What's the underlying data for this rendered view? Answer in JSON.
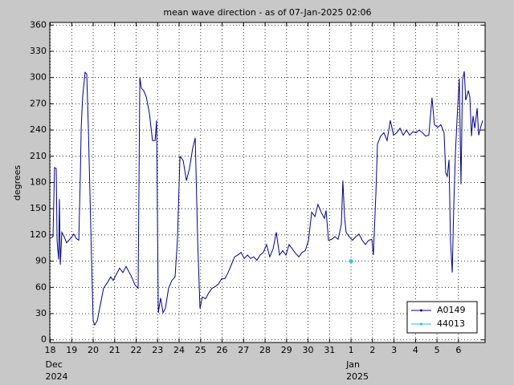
{
  "chart_data": {
    "type": "line",
    "title": "mean wave direction - as of 07-Jan-2025 02:06",
    "ylabel": "degrees",
    "xlim": [
      17.98,
      38.24
    ],
    "ylim": [
      -3,
      363
    ],
    "yticks": [
      0,
      30,
      60,
      90,
      120,
      150,
      180,
      210,
      240,
      270,
      300,
      330,
      360
    ],
    "xticks": [
      18,
      19,
      20,
      21,
      22,
      23,
      24,
      25,
      26,
      27,
      28,
      29,
      30,
      31,
      {
        "value": 32,
        "label": "1"
      },
      {
        "value": 33,
        "label": "2"
      },
      {
        "value": 34,
        "label": "3"
      },
      {
        "value": 35,
        "label": "4"
      },
      {
        "value": 36,
        "label": "5"
      },
      {
        "value": 37,
        "label": "6"
      }
    ],
    "x_period_labels": [
      {
        "value": 18,
        "label": "Dec",
        "year": "2024"
      },
      {
        "value": 32,
        "label": "Jan",
        "year": "2025"
      }
    ],
    "grid": true,
    "legend": "lower right",
    "series": [
      {
        "name": "A0149",
        "color": "#00008b",
        "x": [
          17.98,
          18.13,
          18.2,
          18.28,
          18.32,
          18.39,
          18.43,
          18.47,
          18.54,
          18.65,
          18.76,
          18.91,
          19.1,
          19.21,
          19.33,
          19.4,
          19.44,
          19.51,
          19.62,
          19.7,
          19.77,
          19.85,
          19.92,
          20.0,
          20.07,
          20.19,
          20.33,
          20.48,
          20.67,
          20.82,
          20.93,
          21.08,
          21.23,
          21.38,
          21.53,
          21.68,
          21.79,
          21.94,
          22.09,
          22.17,
          22.24,
          22.35,
          22.47,
          22.61,
          22.76,
          22.88,
          22.95,
          23.03,
          23.14,
          23.25,
          23.36,
          23.51,
          23.66,
          23.81,
          23.92,
          24.04,
          24.19,
          24.34,
          24.48,
          24.63,
          24.75,
          24.86,
          24.97,
          25.08,
          25.23,
          25.38,
          25.53,
          25.68,
          25.83,
          25.98,
          26.13,
          26.28,
          26.43,
          26.58,
          26.73,
          26.88,
          27.03,
          27.18,
          27.33,
          27.47,
          27.62,
          27.77,
          27.92,
          28.07,
          28.22,
          28.37,
          28.52,
          28.67,
          28.82,
          28.97,
          29.12,
          29.27,
          29.42,
          29.57,
          29.72,
          29.87,
          30.02,
          30.17,
          30.32,
          30.46,
          30.61,
          30.76,
          30.84,
          30.95,
          31.1,
          31.25,
          31.4,
          31.55,
          31.62,
          31.7,
          31.77,
          31.92,
          32.07,
          32.22,
          32.37,
          32.52,
          32.67,
          32.82,
          32.97,
          33.04,
          33.16,
          33.23,
          33.38,
          33.53,
          33.68,
          33.83,
          33.98,
          34.13,
          34.28,
          34.43,
          34.58,
          34.73,
          34.88,
          35.03,
          35.17,
          35.32,
          35.47,
          35.62,
          35.77,
          35.88,
          36.03,
          36.18,
          36.33,
          36.41,
          36.48,
          36.56,
          36.63,
          36.71,
          36.78,
          36.86,
          36.93,
          37.04,
          37.12,
          37.19,
          37.27,
          37.34,
          37.46,
          37.53,
          37.61,
          37.68,
          37.76,
          37.87,
          37.94,
          38.02,
          38.13
        ],
        "values": [
          116,
          118,
          197,
          196,
          113,
          92,
          161,
          86,
          123,
          118,
          111,
          115,
          121,
          116,
          114,
          187,
          242,
          278,
          306,
          304,
          246,
          168,
          95,
          22,
          17,
          22,
          40,
          59,
          66,
          72,
          68,
          75,
          82,
          77,
          84,
          77,
          72,
          63,
          59,
          300,
          288,
          285,
          278,
          260,
          228,
          228,
          251,
          31,
          48,
          31,
          36,
          59,
          68,
          72,
          114,
          210,
          205,
          182,
          196,
          219,
          231,
          114,
          36,
          49,
          47,
          54,
          59,
          61,
          64,
          70,
          70,
          77,
          86,
          95,
          97,
          100,
          93,
          97,
          93,
          95,
          91,
          97,
          100,
          109,
          95,
          104,
          123,
          97,
          102,
          97,
          109,
          104,
          99,
          95,
          100,
          102,
          114,
          146,
          141,
          155,
          146,
          139,
          148,
          114,
          115,
          118,
          115,
          132,
          182,
          141,
          123,
          118,
          114,
          118,
          121,
          114,
          109,
          114,
          115,
          97,
          169,
          224,
          233,
          237,
          228,
          251,
          234,
          237,
          242,
          234,
          240,
          234,
          238,
          237,
          240,
          237,
          233,
          234,
          277,
          246,
          243,
          246,
          237,
          191,
          187,
          206,
          114,
          77,
          150,
          214,
          251,
          299,
          178,
          297,
          307,
          274,
          285,
          278,
          233,
          256,
          242,
          265,
          234,
          242,
          251
        ]
      },
      {
        "name": "44013",
        "color": "#20c0e0",
        "x": [
          32.0
        ],
        "values": [
          90
        ]
      }
    ]
  }
}
